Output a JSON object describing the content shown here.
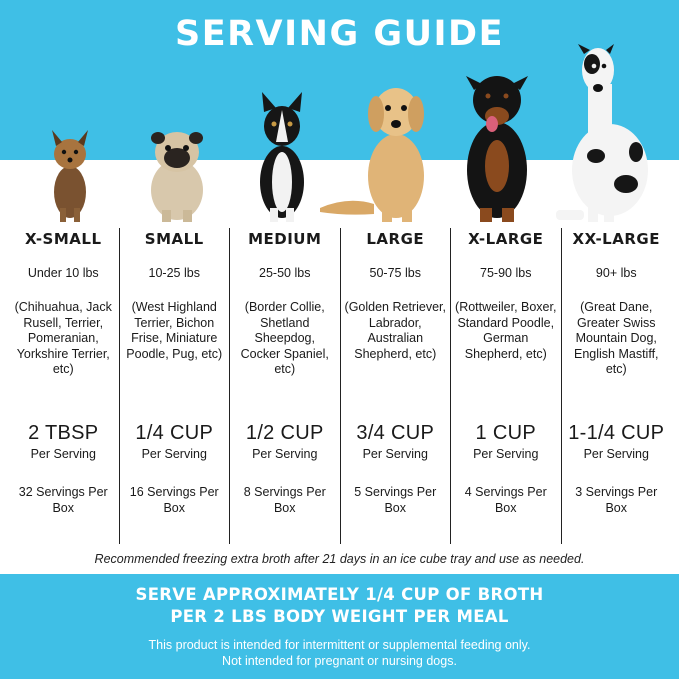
{
  "title": "SERVING GUIDE",
  "sizes": [
    {
      "name": "X-SMALL",
      "weight": "Under 10 lbs",
      "breeds": "(Chihuahua, Jack Rusell, Terrier, Pomeranian, Yorkshire Terrier, etc)",
      "amount": "2 TBSP",
      "per": "Per Serving",
      "servings": "32 Servings Per Box",
      "dog_icon": "yorkshire-terrier-photo"
    },
    {
      "name": "SMALL",
      "weight": "10-25 lbs",
      "breeds": "(West Highland Terrier, Bichon Frise, Miniature Poodle, Pug, etc)",
      "amount": "1/4 CUP",
      "per": "Per Serving",
      "servings": "16 Servings Per Box",
      "dog_icon": "pug-photo"
    },
    {
      "name": "MEDIUM",
      "weight": "25-50 lbs",
      "breeds": "(Border Collie, Shetland Sheepdog, Cocker Spaniel, etc)",
      "amount": "1/2 CUP",
      "per": "Per Serving",
      "servings": "8 Servings Per Box",
      "dog_icon": "border-collie-photo"
    },
    {
      "name": "LARGE",
      "weight": "50-75 lbs",
      "breeds": "(Golden Retriever, Labrador, Australian Shepherd, etc)",
      "amount": "3/4 CUP",
      "per": "Per Serving",
      "servings": "5 Servings Per Box",
      "dog_icon": "golden-retriever-photo"
    },
    {
      "name": "X-LARGE",
      "weight": "75-90 lbs",
      "breeds": "(Rottweiler, Boxer, Standard Poodle, German Shepherd, etc)",
      "amount": "1 CUP",
      "per": "Per Serving",
      "servings": "4 Servings Per Box",
      "dog_icon": "rottweiler-photo"
    },
    {
      "name": "XX-LARGE",
      "weight": "90+ lbs",
      "breeds": "(Great Dane, Greater Swiss Mountain Dog, English Mastiff, etc)",
      "amount": "1-1/4 CUP",
      "per": "Per Serving",
      "servings": "3 Servings Per Box",
      "dog_icon": "great-dane-photo"
    }
  ],
  "note": "Recommended freezing extra broth after 21 days in an ice cube tray and use as needed.",
  "headline_line1": "SERVE APPROXIMATELY 1/4 CUP OF BROTH",
  "headline_line2": "PER 2 LBS BODY WEIGHT PER MEAL",
  "disclaimer_line1": "This product is intended for intermittent or supplemental feeding only.",
  "disclaimer_line2": "Not intended for pregnant or nursing dogs.",
  "colors": {
    "accent": "#3fbfe6",
    "text": "#1a1a1a",
    "background": "#ffffff"
  }
}
